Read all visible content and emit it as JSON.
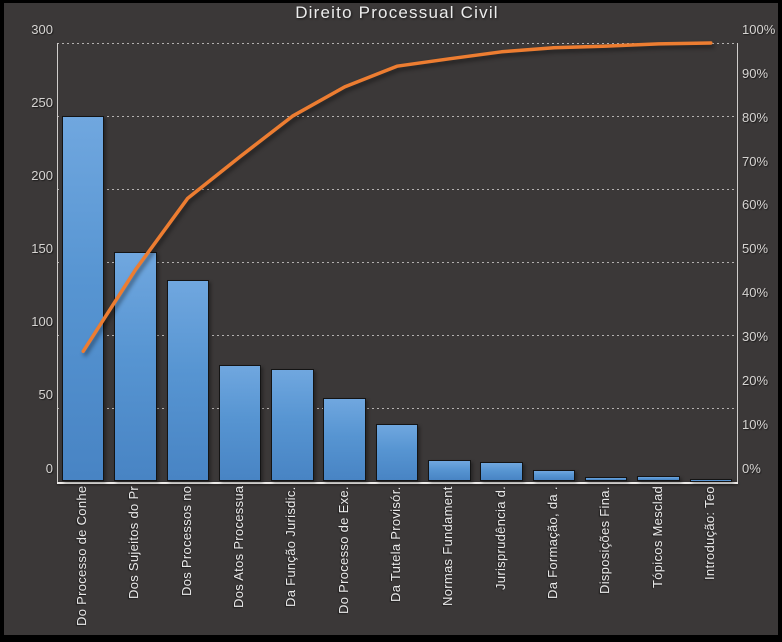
{
  "title": "Direito Processual Civil",
  "chart_data": {
    "type": "bar+line (pareto)",
    "title": "Direito Processual Civil",
    "categories": [
      "Do Processo de Conhe",
      "Dos Sujeitos do Pr",
      "Dos Processos no",
      "Dos Atos Processua",
      "Da Função Jurisdic.",
      "Do Processo de Exe.",
      "Da Tutela Provisór.",
      "Normas Fundament",
      "Jurisprudência d.",
      "Da Formação, da .",
      "Disposições Fina.",
      "Tópicos Mesclad",
      "Introdução: Teo"
    ],
    "series": [
      {
        "id": "bars",
        "type": "bar",
        "axis": "left",
        "color": "#5b9bd5",
        "values": [
          250,
          157,
          138,
          80,
          77,
          57,
          39,
          15,
          13,
          8,
          3,
          4,
          2
        ]
      },
      {
        "id": "cumulative-line",
        "type": "line",
        "axis": "right",
        "color": "#ed7d31",
        "values": [
          29.7,
          48.3,
          64.6,
          74.1,
          83.3,
          90.0,
          94.7,
          96.4,
          98.0,
          98.9,
          99.3,
          99.8,
          100.0
        ]
      }
    ],
    "left_axis": {
      "min": 0,
      "max": 300,
      "tick_labels": [
        "300",
        "250",
        "200",
        "150",
        "100",
        "50",
        "0"
      ],
      "tick_values": [
        300,
        250,
        200,
        150,
        100,
        50,
        0
      ]
    },
    "right_axis": {
      "min": 0,
      "max": 100,
      "tick_labels": [
        "100%",
        "90%",
        "80%",
        "70%",
        "60%",
        "50%",
        "40%",
        "30%",
        "20%",
        "10%",
        "0%"
      ],
      "tick_values": [
        100,
        90,
        80,
        70,
        60,
        50,
        40,
        30,
        20,
        10,
        0
      ]
    },
    "grid": {
      "horizontal": "dashed",
      "vertical": "none"
    },
    "legend": "none"
  },
  "colors": {
    "background": "#3b3838",
    "frame": "#000000",
    "bar_fill_top": "#70a7df",
    "bar_fill_bottom": "#4884c4",
    "bar_border": "#141414",
    "line": "#ed7d31",
    "gridline": "#e2e0de",
    "axis_line": "#cfcdcb",
    "text": "#eaeaea"
  }
}
